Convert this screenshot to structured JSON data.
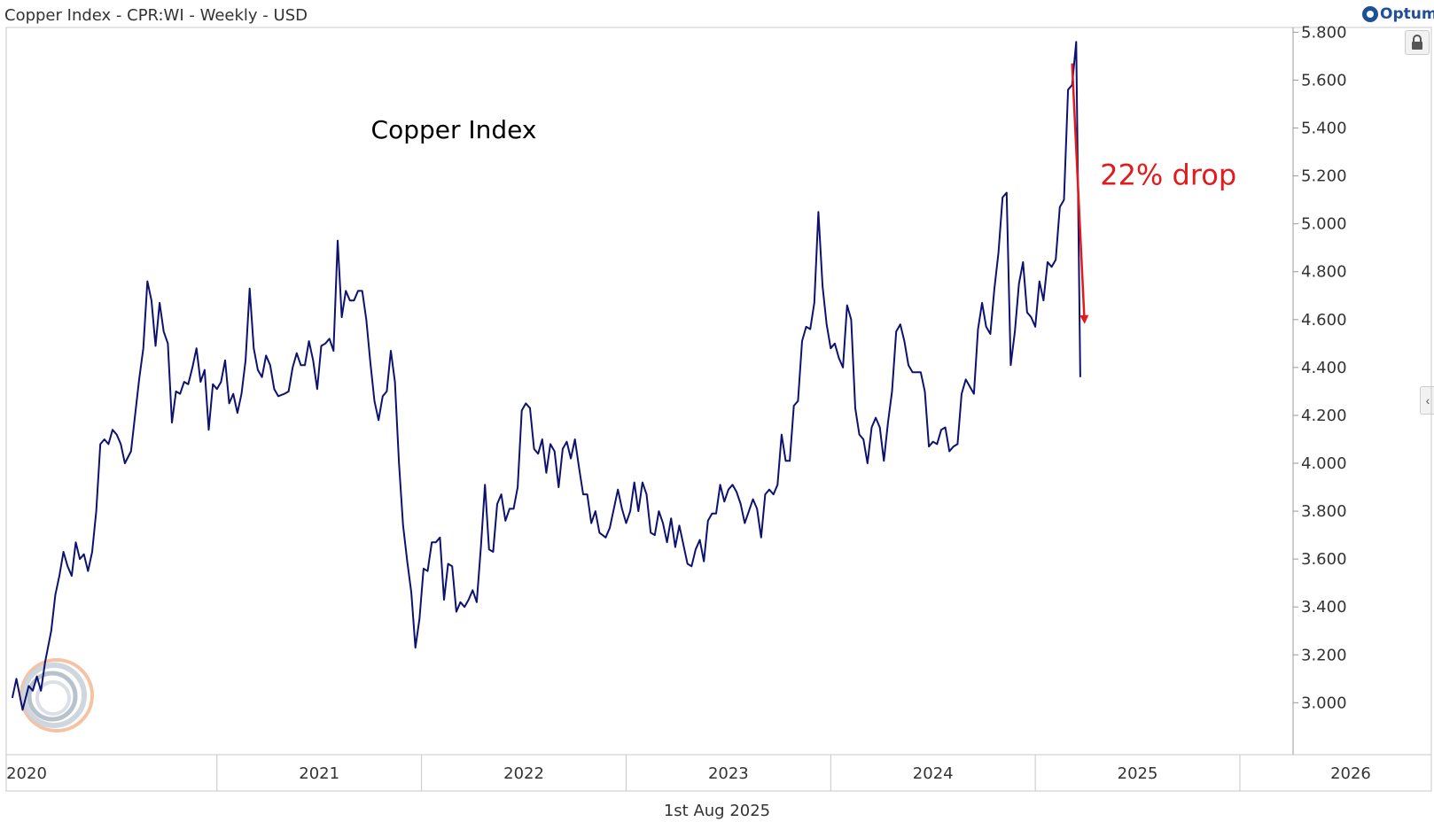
{
  "header": {
    "title": "Copper Index - CPR:WI - Weekly - USD",
    "logo_text": "Optuma",
    "date_label": "1st Aug 2025"
  },
  "colors": {
    "series": "#0d1270",
    "annotation": "#e31a1c",
    "grid_border": "#c8c8c8",
    "text": "#333333"
  },
  "icons": {
    "lock": "lock-icon",
    "collapse": "chevron-left-icon"
  },
  "chart_data": {
    "type": "line",
    "title": "Copper Index",
    "xlabel": "",
    "ylabel": "",
    "xlim": [
      2019.97,
      2026.26
    ],
    "ylim": [
      2.82,
      5.82
    ],
    "x_ticks": [
      "2020",
      "2021",
      "2022",
      "2023",
      "2024",
      "2025",
      "2026"
    ],
    "y_ticks": [
      "3.000",
      "3.200",
      "3.400",
      "3.600",
      "3.800",
      "4.000",
      "4.200",
      "4.400",
      "4.600",
      "4.800",
      "5.000",
      "5.200",
      "5.400",
      "5.600",
      "5.800"
    ],
    "grid": false,
    "annotations": [
      {
        "text": "22% drop",
        "x": 2025.65,
        "y": 5.2
      },
      {
        "arrow_from": [
          2025.18,
          5.67
        ],
        "arrow_to": [
          2025.24,
          4.6
        ]
      }
    ],
    "series": [
      {
        "points": [
          [
            2020.0,
            3.02
          ],
          [
            2020.02,
            3.1
          ],
          [
            2020.05,
            2.97
          ],
          [
            2020.08,
            3.07
          ],
          [
            2020.1,
            3.05
          ],
          [
            2020.12,
            3.11
          ],
          [
            2020.14,
            3.05
          ],
          [
            2020.16,
            3.17
          ],
          [
            2020.19,
            3.3
          ],
          [
            2020.21,
            3.45
          ],
          [
            2020.23,
            3.53
          ],
          [
            2020.25,
            3.63
          ],
          [
            2020.27,
            3.57
          ],
          [
            2020.29,
            3.53
          ],
          [
            2020.31,
            3.67
          ],
          [
            2020.33,
            3.6
          ],
          [
            2020.35,
            3.62
          ],
          [
            2020.37,
            3.55
          ],
          [
            2020.39,
            3.63
          ],
          [
            2020.41,
            3.8
          ],
          [
            2020.43,
            4.08
          ],
          [
            2020.45,
            4.1
          ],
          [
            2020.47,
            4.08
          ],
          [
            2020.49,
            4.14
          ],
          [
            2020.51,
            4.12
          ],
          [
            2020.53,
            4.08
          ],
          [
            2020.55,
            4.0
          ],
          [
            2020.58,
            4.05
          ],
          [
            2020.6,
            4.2
          ],
          [
            2020.62,
            4.35
          ],
          [
            2020.64,
            4.48
          ],
          [
            2020.66,
            4.76
          ],
          [
            2020.68,
            4.68
          ],
          [
            2020.7,
            4.49
          ],
          [
            2020.72,
            4.67
          ],
          [
            2020.74,
            4.55
          ],
          [
            2020.76,
            4.5
          ],
          [
            2020.78,
            4.17
          ],
          [
            2020.8,
            4.3
          ],
          [
            2020.82,
            4.29
          ],
          [
            2020.84,
            4.34
          ],
          [
            2020.86,
            4.33
          ],
          [
            2020.88,
            4.4
          ],
          [
            2020.9,
            4.48
          ],
          [
            2020.92,
            4.34
          ],
          [
            2020.94,
            4.39
          ],
          [
            2020.96,
            4.14
          ],
          [
            2020.98,
            4.33
          ],
          [
            2021.0,
            4.31
          ],
          [
            2021.02,
            4.34
          ],
          [
            2021.04,
            4.43
          ],
          [
            2021.06,
            4.25
          ],
          [
            2021.08,
            4.29
          ],
          [
            2021.1,
            4.21
          ],
          [
            2021.12,
            4.29
          ],
          [
            2021.14,
            4.43
          ],
          [
            2021.16,
            4.73
          ],
          [
            2021.18,
            4.48
          ],
          [
            2021.2,
            4.39
          ],
          [
            2021.22,
            4.36
          ],
          [
            2021.24,
            4.45
          ],
          [
            2021.26,
            4.41
          ],
          [
            2021.28,
            4.31
          ],
          [
            2021.3,
            4.28
          ],
          [
            2021.33,
            4.29
          ],
          [
            2021.35,
            4.3
          ],
          [
            2021.37,
            4.4
          ],
          [
            2021.39,
            4.46
          ],
          [
            2021.41,
            4.41
          ],
          [
            2021.43,
            4.41
          ],
          [
            2021.45,
            4.51
          ],
          [
            2021.47,
            4.43
          ],
          [
            2021.49,
            4.31
          ],
          [
            2021.51,
            4.49
          ],
          [
            2021.53,
            4.5
          ],
          [
            2021.55,
            4.52
          ],
          [
            2021.57,
            4.47
          ],
          [
            2021.59,
            4.93
          ],
          [
            2021.61,
            4.61
          ],
          [
            2021.63,
            4.72
          ],
          [
            2021.65,
            4.68
          ],
          [
            2021.67,
            4.68
          ],
          [
            2021.69,
            4.72
          ],
          [
            2021.71,
            4.72
          ],
          [
            2021.73,
            4.6
          ],
          [
            2021.75,
            4.42
          ],
          [
            2021.77,
            4.26
          ],
          [
            2021.79,
            4.18
          ],
          [
            2021.81,
            4.28
          ],
          [
            2021.83,
            4.3
          ],
          [
            2021.85,
            4.47
          ],
          [
            2021.87,
            4.34
          ],
          [
            2021.89,
            4.0
          ],
          [
            2021.91,
            3.74
          ],
          [
            2021.93,
            3.59
          ],
          [
            2021.95,
            3.46
          ],
          [
            2021.97,
            3.23
          ],
          [
            2021.99,
            3.35
          ],
          [
            2022.01,
            3.56
          ],
          [
            2022.03,
            3.55
          ],
          [
            2022.05,
            3.67
          ],
          [
            2022.07,
            3.67
          ],
          [
            2022.09,
            3.69
          ],
          [
            2022.11,
            3.43
          ],
          [
            2022.13,
            3.58
          ],
          [
            2022.15,
            3.57
          ],
          [
            2022.17,
            3.38
          ],
          [
            2022.19,
            3.42
          ],
          [
            2022.21,
            3.4
          ],
          [
            2022.23,
            3.43
          ],
          [
            2022.25,
            3.47
          ],
          [
            2022.27,
            3.42
          ],
          [
            2022.29,
            3.65
          ],
          [
            2022.31,
            3.91
          ],
          [
            2022.33,
            3.64
          ],
          [
            2022.35,
            3.63
          ],
          [
            2022.37,
            3.83
          ],
          [
            2022.39,
            3.87
          ],
          [
            2022.41,
            3.76
          ],
          [
            2022.43,
            3.81
          ],
          [
            2022.45,
            3.81
          ],
          [
            2022.47,
            3.9
          ],
          [
            2022.49,
            4.22
          ],
          [
            2022.51,
            4.25
          ],
          [
            2022.53,
            4.23
          ],
          [
            2022.55,
            4.06
          ],
          [
            2022.57,
            4.04
          ],
          [
            2022.59,
            4.1
          ],
          [
            2022.61,
            3.96
          ],
          [
            2022.63,
            4.08
          ],
          [
            2022.65,
            4.05
          ],
          [
            2022.67,
            3.9
          ],
          [
            2022.69,
            4.06
          ],
          [
            2022.71,
            4.09
          ],
          [
            2022.73,
            4.02
          ],
          [
            2022.75,
            4.1
          ],
          [
            2022.77,
            3.98
          ],
          [
            2022.79,
            3.87
          ],
          [
            2022.81,
            3.87
          ],
          [
            2022.83,
            3.75
          ],
          [
            2022.85,
            3.8
          ],
          [
            2022.87,
            3.71
          ],
          [
            2022.9,
            3.69
          ],
          [
            2022.92,
            3.73
          ],
          [
            2022.94,
            3.81
          ],
          [
            2022.96,
            3.89
          ],
          [
            2022.98,
            3.81
          ],
          [
            2023.0,
            3.75
          ],
          [
            2023.02,
            3.8
          ],
          [
            2023.04,
            3.92
          ],
          [
            2023.06,
            3.8
          ],
          [
            2023.08,
            3.92
          ],
          [
            2023.1,
            3.87
          ],
          [
            2023.12,
            3.71
          ],
          [
            2023.14,
            3.7
          ],
          [
            2023.16,
            3.8
          ],
          [
            2023.18,
            3.75
          ],
          [
            2023.2,
            3.67
          ],
          [
            2023.22,
            3.77
          ],
          [
            2023.24,
            3.65
          ],
          [
            2023.26,
            3.74
          ],
          [
            2023.28,
            3.66
          ],
          [
            2023.3,
            3.58
          ],
          [
            2023.32,
            3.57
          ],
          [
            2023.34,
            3.64
          ],
          [
            2023.36,
            3.68
          ],
          [
            2023.38,
            3.59
          ],
          [
            2023.4,
            3.76
          ],
          [
            2023.42,
            3.79
          ],
          [
            2023.44,
            3.79
          ],
          [
            2023.46,
            3.91
          ],
          [
            2023.48,
            3.84
          ],
          [
            2023.5,
            3.89
          ],
          [
            2023.52,
            3.91
          ],
          [
            2023.54,
            3.88
          ],
          [
            2023.56,
            3.83
          ],
          [
            2023.58,
            3.75
          ],
          [
            2023.6,
            3.8
          ],
          [
            2023.62,
            3.85
          ],
          [
            2023.64,
            3.81
          ],
          [
            2023.66,
            3.69
          ],
          [
            2023.68,
            3.87
          ],
          [
            2023.7,
            3.89
          ],
          [
            2023.72,
            3.87
          ],
          [
            2023.74,
            3.91
          ],
          [
            2023.76,
            4.12
          ],
          [
            2023.78,
            4.01
          ],
          [
            2023.8,
            4.01
          ],
          [
            2023.82,
            4.24
          ],
          [
            2023.84,
            4.26
          ],
          [
            2023.86,
            4.51
          ],
          [
            2023.88,
            4.57
          ],
          [
            2023.9,
            4.56
          ],
          [
            2023.92,
            4.67
          ],
          [
            2023.94,
            5.05
          ],
          [
            2023.96,
            4.74
          ],
          [
            2023.98,
            4.58
          ],
          [
            2024.0,
            4.48
          ],
          [
            2024.02,
            4.5
          ],
          [
            2024.04,
            4.44
          ],
          [
            2024.06,
            4.4
          ],
          [
            2024.08,
            4.66
          ],
          [
            2024.1,
            4.6
          ],
          [
            2024.12,
            4.23
          ],
          [
            2024.14,
            4.12
          ],
          [
            2024.16,
            4.1
          ],
          [
            2024.18,
            4.0
          ],
          [
            2024.2,
            4.15
          ],
          [
            2024.22,
            4.19
          ],
          [
            2024.24,
            4.15
          ],
          [
            2024.26,
            4.01
          ],
          [
            2024.28,
            4.17
          ],
          [
            2024.3,
            4.3
          ],
          [
            2024.32,
            4.55
          ],
          [
            2024.34,
            4.58
          ],
          [
            2024.36,
            4.51
          ],
          [
            2024.38,
            4.41
          ],
          [
            2024.4,
            4.38
          ],
          [
            2024.42,
            4.38
          ],
          [
            2024.44,
            4.38
          ],
          [
            2024.46,
            4.3
          ],
          [
            2024.48,
            4.07
          ],
          [
            2024.5,
            4.09
          ],
          [
            2024.52,
            4.08
          ],
          [
            2024.54,
            4.14
          ],
          [
            2024.56,
            4.15
          ],
          [
            2024.58,
            4.05
          ],
          [
            2024.6,
            4.07
          ],
          [
            2024.62,
            4.08
          ],
          [
            2024.64,
            4.29
          ],
          [
            2024.66,
            4.35
          ],
          [
            2024.68,
            4.32
          ],
          [
            2024.7,
            4.29
          ],
          [
            2024.72,
            4.56
          ],
          [
            2024.74,
            4.67
          ],
          [
            2024.76,
            4.57
          ],
          [
            2024.78,
            4.54
          ],
          [
            2024.8,
            4.73
          ],
          [
            2024.82,
            4.88
          ],
          [
            2024.84,
            5.11
          ],
          [
            2024.86,
            5.13
          ],
          [
            2024.88,
            4.41
          ],
          [
            2024.9,
            4.55
          ],
          [
            2024.92,
            4.75
          ],
          [
            2024.94,
            4.84
          ],
          [
            2024.96,
            4.63
          ],
          [
            2024.98,
            4.61
          ],
          [
            2025.0,
            4.57
          ],
          [
            2025.02,
            4.76
          ],
          [
            2025.04,
            4.68
          ],
          [
            2025.06,
            4.84
          ],
          [
            2025.08,
            4.82
          ],
          [
            2025.1,
            4.85
          ],
          [
            2025.12,
            5.07
          ],
          [
            2025.14,
            5.1
          ],
          [
            2025.16,
            5.56
          ],
          [
            2025.18,
            5.58
          ],
          [
            2025.2,
            5.76
          ],
          [
            2025.22,
            4.36
          ]
        ]
      }
    ]
  }
}
